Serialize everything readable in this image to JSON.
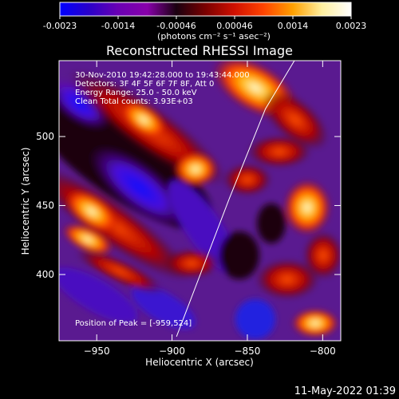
{
  "colorbar": {
    "tick_labels": [
      "-0.0023",
      "-0.0014",
      "-0.00046",
      "0.00046",
      "0.0014",
      "0.0023"
    ],
    "unit_label": "(photons cm⁻² s⁻¹ asec⁻²)",
    "colors": [
      "#0000ff",
      "#2a00c8",
      "#6a00b4",
      "#8800aa",
      "#1a0010",
      "#7a0000",
      "#d01000",
      "#ff4400",
      "#ffa000",
      "#fff0a0",
      "#ffffff"
    ]
  },
  "chart_data": {
    "type": "heatmap",
    "title": "Reconstructed RHESSI Image",
    "xlabel": "Heliocentric X (arcsec)",
    "ylabel": "Heliocentric Y (arcsec)",
    "xlim": [
      -975,
      -788
    ],
    "ylim": [
      352,
      555
    ],
    "x_ticks": [
      -950,
      -900,
      -850,
      -800
    ],
    "y_ticks": [
      400,
      450,
      500
    ],
    "x_tick_labels": [
      "−950",
      "−900",
      "−850",
      "−800"
    ],
    "y_tick_labels": [
      "400",
      "450",
      "500"
    ],
    "annotations": [
      "30-Nov-2010 19:42:28.000 to 19:43:44.000",
      "Detectors: 3F 4F 5F 6F 7F 8F, Att 0",
      "Energy Range: 25.0 - 50.0 keV",
      "Clean    Total counts: 3.93E+03"
    ],
    "peak_label": "Position of Peak = [-959,524]",
    "peak": [
      -959,
      524
    ],
    "limb_line": [
      [
        -897,
        355
      ],
      [
        -862,
        455
      ],
      [
        -838,
        520
      ],
      [
        -816,
        560
      ]
    ]
  },
  "timestamp": "11-May-2022 01:39"
}
